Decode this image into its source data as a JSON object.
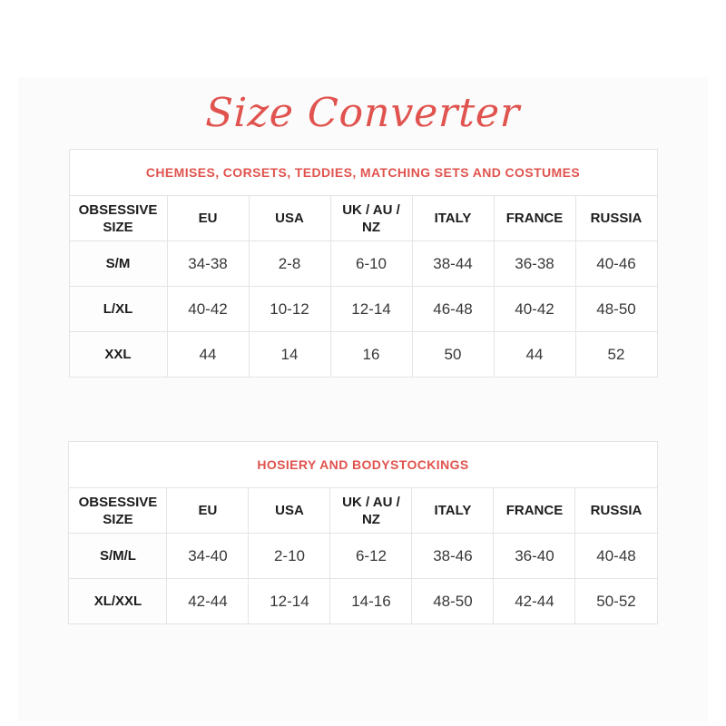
{
  "page": {
    "title": "Size Converter"
  },
  "colors": {
    "accent": "#e0534e",
    "table_border": "#e4e4e4",
    "header_text": "#1c1c1c",
    "cell_text": "#383838",
    "panel_background": "#fbfbfb"
  },
  "tables": [
    {
      "caption": "CHEMISES, CORSETS, TEDDIES, MATCHING SETS AND COSTUMES",
      "columns": [
        "OBSESSIVE SIZE",
        "EU",
        "USA",
        "UK / AU / NZ",
        "ITALY",
        "FRANCE",
        "RUSSIA"
      ],
      "rows": [
        [
          "S/M",
          "34-38",
          "2-8",
          "6-10",
          "38-44",
          "36-38",
          "40-46"
        ],
        [
          "L/XL",
          "40-42",
          "10-12",
          "12-14",
          "46-48",
          "40-42",
          "48-50"
        ],
        [
          "XXL",
          "44",
          "14",
          "16",
          "50",
          "44",
          "52"
        ]
      ]
    },
    {
      "caption": "HOSIERY AND BODYSTOCKINGS",
      "columns": [
        "OBSESSIVE SIZE",
        "EU",
        "USA",
        "UK / AU / NZ",
        "ITALY",
        "FRANCE",
        "RUSSIA"
      ],
      "rows": [
        [
          "S/M/L",
          "34-40",
          "2-10",
          "6-12",
          "38-46",
          "36-40",
          "40-48"
        ],
        [
          "XL/XXL",
          "42-44",
          "12-14",
          "14-16",
          "48-50",
          "42-44",
          "50-52"
        ]
      ]
    }
  ]
}
